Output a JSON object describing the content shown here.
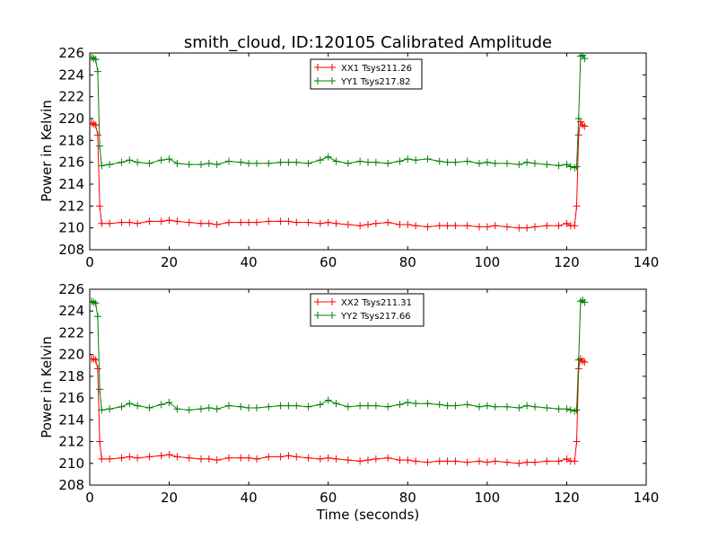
{
  "chart_data": [
    {
      "type": "line",
      "title": "smith_cloud, ID:120105 Calibrated Amplitude",
      "xlabel": "",
      "ylabel": "Power in Kelvin",
      "xlim": [
        0,
        140
      ],
      "ylim": [
        208,
        226
      ],
      "xticks": [
        "0",
        "20",
        "40",
        "60",
        "80",
        "100",
        "120",
        "140"
      ],
      "yticks": [
        "208",
        "210",
        "212",
        "214",
        "216",
        "218",
        "220",
        "222",
        "224",
        "226"
      ],
      "legend_position": "top-center",
      "grid": false,
      "series": [
        {
          "name": "XX1 Tsys211.26",
          "color": "#ff0000",
          "marker": "plus",
          "points": [
            [
              0.5,
              219.6
            ],
            [
              1.0,
              219.5
            ],
            [
              1.5,
              219.4
            ],
            [
              2.0,
              218.5
            ],
            [
              2.5,
              212.0
            ],
            [
              3.0,
              210.4
            ],
            [
              5,
              210.4
            ],
            [
              8,
              210.5
            ],
            [
              10,
              210.5
            ],
            [
              12,
              210.4
            ],
            [
              15,
              210.6
            ],
            [
              18,
              210.6
            ],
            [
              20,
              210.7
            ],
            [
              22,
              210.6
            ],
            [
              25,
              210.5
            ],
            [
              28,
              210.4
            ],
            [
              30,
              210.4
            ],
            [
              32,
              210.3
            ],
            [
              35,
              210.5
            ],
            [
              38,
              210.5
            ],
            [
              40,
              210.5
            ],
            [
              42,
              210.5
            ],
            [
              45,
              210.6
            ],
            [
              48,
              210.6
            ],
            [
              50,
              210.6
            ],
            [
              52,
              210.5
            ],
            [
              55,
              210.5
            ],
            [
              58,
              210.4
            ],
            [
              60,
              210.5
            ],
            [
              62,
              210.4
            ],
            [
              65,
              210.3
            ],
            [
              68,
              210.2
            ],
            [
              70,
              210.3
            ],
            [
              72,
              210.4
            ],
            [
              75,
              210.5
            ],
            [
              78,
              210.3
            ],
            [
              80,
              210.3
            ],
            [
              82,
              210.2
            ],
            [
              85,
              210.1
            ],
            [
              88,
              210.2
            ],
            [
              90,
              210.2
            ],
            [
              92,
              210.2
            ],
            [
              95,
              210.2
            ],
            [
              98,
              210.1
            ],
            [
              100,
              210.1
            ],
            [
              102,
              210.2
            ],
            [
              105,
              210.1
            ],
            [
              108,
              210.0
            ],
            [
              110,
              210.0
            ],
            [
              112,
              210.1
            ],
            [
              115,
              210.2
            ],
            [
              118,
              210.2
            ],
            [
              120,
              210.4
            ],
            [
              121,
              210.2
            ],
            [
              122,
              210.2
            ],
            [
              122.5,
              212.0
            ],
            [
              123,
              218.5
            ],
            [
              123.5,
              219.7
            ],
            [
              124,
              219.4
            ],
            [
              124.5,
              219.3
            ]
          ]
        },
        {
          "name": "YY1 Tsys217.82",
          "color": "#008000",
          "marker": "plus",
          "points": [
            [
              0.5,
              225.6
            ],
            [
              1.0,
              225.5
            ],
            [
              1.5,
              225.4
            ],
            [
              2.0,
              224.3
            ],
            [
              2.5,
              217.5
            ],
            [
              3.0,
              215.7
            ],
            [
              5,
              215.8
            ],
            [
              8,
              216.0
            ],
            [
              10,
              216.2
            ],
            [
              12,
              216.0
            ],
            [
              15,
              215.9
            ],
            [
              18,
              216.2
            ],
            [
              20,
              216.3
            ],
            [
              22,
              215.9
            ],
            [
              25,
              215.8
            ],
            [
              28,
              215.8
            ],
            [
              30,
              215.9
            ],
            [
              32,
              215.8
            ],
            [
              35,
              216.1
            ],
            [
              38,
              216.0
            ],
            [
              40,
              215.9
            ],
            [
              42,
              215.9
            ],
            [
              45,
              215.9
            ],
            [
              48,
              216.0
            ],
            [
              50,
              216.0
            ],
            [
              52,
              216.0
            ],
            [
              55,
              215.9
            ],
            [
              58,
              216.2
            ],
            [
              60,
              216.5
            ],
            [
              62,
              216.1
            ],
            [
              65,
              215.9
            ],
            [
              68,
              216.1
            ],
            [
              70,
              216.0
            ],
            [
              72,
              216.0
            ],
            [
              75,
              215.9
            ],
            [
              78,
              216.1
            ],
            [
              80,
              216.3
            ],
            [
              82,
              216.2
            ],
            [
              85,
              216.3
            ],
            [
              88,
              216.1
            ],
            [
              90,
              216.0
            ],
            [
              92,
              216.0
            ],
            [
              95,
              216.1
            ],
            [
              98,
              215.9
            ],
            [
              100,
              216.0
            ],
            [
              102,
              215.9
            ],
            [
              105,
              215.9
            ],
            [
              108,
              215.8
            ],
            [
              110,
              216.0
            ],
            [
              112,
              215.9
            ],
            [
              115,
              215.8
            ],
            [
              118,
              215.7
            ],
            [
              120,
              215.8
            ],
            [
              121,
              215.6
            ],
            [
              122,
              215.5
            ],
            [
              122.5,
              215.6
            ],
            [
              123,
              220.0
            ],
            [
              123.5,
              225.7
            ],
            [
              124,
              225.8
            ],
            [
              124.5,
              225.5
            ]
          ]
        }
      ]
    },
    {
      "type": "line",
      "title": "",
      "xlabel": "Time (seconds)",
      "ylabel": "Power in Kelvin",
      "xlim": [
        0,
        140
      ],
      "ylim": [
        208,
        226
      ],
      "xticks": [
        "0",
        "20",
        "40",
        "60",
        "80",
        "100",
        "120",
        "140"
      ],
      "yticks": [
        "208",
        "210",
        "212",
        "214",
        "216",
        "218",
        "220",
        "222",
        "224",
        "226"
      ],
      "legend_position": "top-center",
      "grid": false,
      "series": [
        {
          "name": "XX2 Tsys211.31",
          "color": "#ff0000",
          "marker": "plus",
          "points": [
            [
              0.5,
              219.6
            ],
            [
              1.0,
              219.6
            ],
            [
              1.5,
              219.5
            ],
            [
              2.0,
              218.7
            ],
            [
              2.5,
              212.0
            ],
            [
              3.0,
              210.4
            ],
            [
              5,
              210.4
            ],
            [
              8,
              210.5
            ],
            [
              10,
              210.6
            ],
            [
              12,
              210.5
            ],
            [
              15,
              210.6
            ],
            [
              18,
              210.7
            ],
            [
              20,
              210.8
            ],
            [
              22,
              210.6
            ],
            [
              25,
              210.5
            ],
            [
              28,
              210.4
            ],
            [
              30,
              210.4
            ],
            [
              32,
              210.3
            ],
            [
              35,
              210.5
            ],
            [
              38,
              210.5
            ],
            [
              40,
              210.5
            ],
            [
              42,
              210.4
            ],
            [
              45,
              210.6
            ],
            [
              48,
              210.6
            ],
            [
              50,
              210.7
            ],
            [
              52,
              210.6
            ],
            [
              55,
              210.5
            ],
            [
              58,
              210.4
            ],
            [
              60,
              210.5
            ],
            [
              62,
              210.4
            ],
            [
              65,
              210.3
            ],
            [
              68,
              210.2
            ],
            [
              70,
              210.3
            ],
            [
              72,
              210.4
            ],
            [
              75,
              210.5
            ],
            [
              78,
              210.3
            ],
            [
              80,
              210.3
            ],
            [
              82,
              210.2
            ],
            [
              85,
              210.1
            ],
            [
              88,
              210.2
            ],
            [
              90,
              210.2
            ],
            [
              92,
              210.2
            ],
            [
              95,
              210.1
            ],
            [
              98,
              210.2
            ],
            [
              100,
              210.1
            ],
            [
              102,
              210.2
            ],
            [
              105,
              210.1
            ],
            [
              108,
              210.0
            ],
            [
              110,
              210.1
            ],
            [
              112,
              210.1
            ],
            [
              115,
              210.2
            ],
            [
              118,
              210.2
            ],
            [
              120,
              210.4
            ],
            [
              121,
              210.2
            ],
            [
              122,
              210.2
            ],
            [
              122.5,
              212.0
            ],
            [
              123,
              218.7
            ],
            [
              123.5,
              219.6
            ],
            [
              124,
              219.4
            ],
            [
              124.5,
              219.3
            ]
          ]
        },
        {
          "name": "YY2 Tsys217.66",
          "color": "#008000",
          "marker": "plus",
          "points": [
            [
              0.5,
              224.9
            ],
            [
              1.0,
              224.8
            ],
            [
              1.5,
              224.7
            ],
            [
              2.0,
              223.5
            ],
            [
              2.5,
              216.8
            ],
            [
              3.0,
              214.9
            ],
            [
              5,
              215.0
            ],
            [
              8,
              215.2
            ],
            [
              10,
              215.5
            ],
            [
              12,
              215.3
            ],
            [
              15,
              215.1
            ],
            [
              18,
              215.4
            ],
            [
              20,
              215.6
            ],
            [
              22,
              215.0
            ],
            [
              25,
              214.9
            ],
            [
              28,
              215.0
            ],
            [
              30,
              215.1
            ],
            [
              32,
              215.0
            ],
            [
              35,
              215.3
            ],
            [
              38,
              215.2
            ],
            [
              40,
              215.1
            ],
            [
              42,
              215.1
            ],
            [
              45,
              215.2
            ],
            [
              48,
              215.3
            ],
            [
              50,
              215.3
            ],
            [
              52,
              215.3
            ],
            [
              55,
              215.2
            ],
            [
              58,
              215.4
            ],
            [
              60,
              215.8
            ],
            [
              62,
              215.5
            ],
            [
              65,
              215.2
            ],
            [
              68,
              215.3
            ],
            [
              70,
              215.3
            ],
            [
              72,
              215.3
            ],
            [
              75,
              215.2
            ],
            [
              78,
              215.4
            ],
            [
              80,
              215.6
            ],
            [
              82,
              215.5
            ],
            [
              85,
              215.5
            ],
            [
              88,
              215.4
            ],
            [
              90,
              215.3
            ],
            [
              92,
              215.3
            ],
            [
              95,
              215.4
            ],
            [
              98,
              215.2
            ],
            [
              100,
              215.3
            ],
            [
              102,
              215.2
            ],
            [
              105,
              215.2
            ],
            [
              108,
              215.1
            ],
            [
              110,
              215.3
            ],
            [
              112,
              215.2
            ],
            [
              115,
              215.1
            ],
            [
              118,
              215.0
            ],
            [
              120,
              215.0
            ],
            [
              121,
              214.9
            ],
            [
              122,
              214.8
            ],
            [
              122.5,
              214.9
            ],
            [
              123,
              219.5
            ],
            [
              123.5,
              224.9
            ],
            [
              124,
              225.0
            ],
            [
              124.5,
              224.8
            ]
          ]
        }
      ]
    }
  ]
}
